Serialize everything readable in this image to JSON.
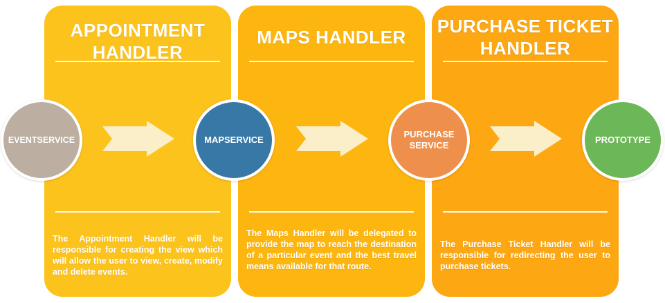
{
  "colors": {
    "panel1": "#fcc31d",
    "panel2": "#fdb60f",
    "panel3": "#fda713",
    "eventservice": "#bcaea0",
    "mapservice": "#3878a6",
    "purchaseservice": "#ef8f4c",
    "prototype": "#6cb858",
    "arrow": "#fbefc9"
  },
  "panels": [
    {
      "title_line1": "APPOINTMENT",
      "title_line2": "HANDLER",
      "description": "The Appointment Handler will be responsible for creating the view which will allow the user to view, create, modify and delete events."
    },
    {
      "title_line1": "MAPS HANDLER",
      "title_line2": "",
      "description": "The Maps Handler will be delegated to provide the map to reach the destination of a particular event and the best travel means available for that route."
    },
    {
      "title_line1": "PURCHASE TICKET",
      "title_line2": "HANDLER",
      "description": "The Purchase Ticket Handler will be responsible for redirecting the user to purchase tickets."
    }
  ],
  "nodes": {
    "eventservice": "EVENTSERVICE",
    "mapservice": "MAPSERVICE",
    "purchase_line1": "PURCHASE",
    "purchase_line2": "SERVICE",
    "prototype": "PROTOTYPE"
  },
  "arrows": [
    {
      "icon": "arrow-right-icon"
    },
    {
      "icon": "arrow-right-icon"
    },
    {
      "icon": "arrow-right-icon"
    }
  ]
}
